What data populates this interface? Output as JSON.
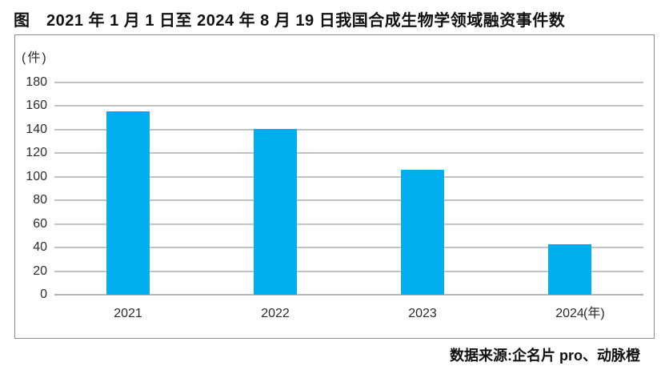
{
  "figure": {
    "title": "图　2021 年 1 月 1 日至 2024 年 8 月 19 日我国合成生物学领域融资事件数"
  },
  "source": {
    "text": "数据来源:企名片 pro、动脉橙"
  },
  "colors": {
    "bar": "#00AEEF",
    "gridline": "#c2c2c2",
    "axis_line": "#b3b3b3",
    "frame_border": "#8f8f8f",
    "text": "#2b2b2b"
  },
  "chart_data": {
    "type": "bar",
    "title": "2021 年 1 月 1 日至 2024 年 8 月 19 日我国合成生物学领域融资事件数",
    "unit_label": "(件)",
    "xlabel": "",
    "ylabel": "件",
    "categories": [
      "2021",
      "2022",
      "2023",
      "2024"
    ],
    "x_suffix": "(年)",
    "values": [
      155,
      140,
      106,
      43
    ],
    "yticks": [
      0,
      20,
      40,
      60,
      80,
      100,
      120,
      140,
      160,
      180
    ],
    "ylim": [
      0,
      195
    ],
    "grid": true,
    "legend": "none"
  }
}
